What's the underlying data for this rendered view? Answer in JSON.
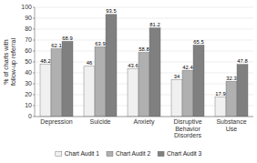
{
  "chart_data": {
    "type": "bar",
    "categories": [
      "Depression",
      "Suicide",
      "Anxiety",
      "Disruptive\nBehavior\nDisorders",
      "Substance\nUse"
    ],
    "series": [
      {
        "name": "Chart Audit 1",
        "color": "#f0f0f0",
        "values": [
          48.2,
          46,
          43.6,
          34,
          17.9
        ]
      },
      {
        "name": "Chart Audit 2",
        "color": "#b0b0b0",
        "values": [
          62.1,
          63.9,
          58.8,
          42.4,
          32.3
        ]
      },
      {
        "name": "Chart Audit 3",
        "color": "#808080",
        "values": [
          68.9,
          93.5,
          81.2,
          65.5,
          47.8
        ]
      }
    ],
    "ylabel": "% of charts with\nfollow-up referral",
    "ylim": [
      0,
      100
    ],
    "yticks": [
      0,
      10,
      20,
      30,
      40,
      50,
      60,
      70,
      80,
      90,
      100
    ],
    "grid": true,
    "data_labels": true,
    "legend": "bottom"
  }
}
